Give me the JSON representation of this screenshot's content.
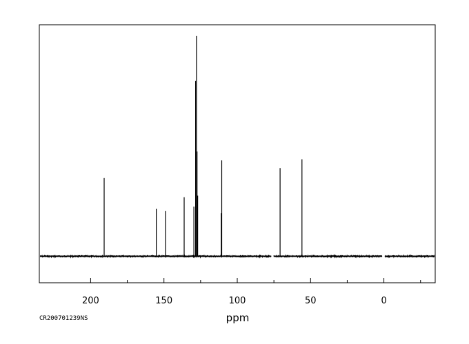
{
  "chart_data": {
    "type": "line",
    "subtype": "nmr-stick-spectrum",
    "title": "",
    "xlabel": "ppm",
    "ylabel": "",
    "sample_id": "CR200701239NS",
    "x_reversed": true,
    "xlim": [
      235,
      -35
    ],
    "ylim": [
      -0.12,
      1.05
    ],
    "x_ticks_major": [
      200,
      150,
      100,
      50,
      0
    ],
    "x_ticks_labeled": [
      "200",
      "150",
      "100",
      "50",
      "0"
    ],
    "x_ticks_minor": [
      175,
      125,
      75,
      25,
      -25
    ],
    "grid": false,
    "legend": "none",
    "baseline_y": 0,
    "baseline_gaps": [
      [
        76.8,
        75.2
      ],
      [
        1.2,
        -0.6
      ]
    ],
    "peaks": [
      {
        "ppm": 190.8,
        "intensity": 0.355
      },
      {
        "ppm": 155.2,
        "intensity": 0.215
      },
      {
        "ppm": 148.9,
        "intensity": 0.205
      },
      {
        "ppm": 136.2,
        "intensity": 0.268
      },
      {
        "ppm": 129.6,
        "intensity": 0.225
      },
      {
        "ppm": 128.4,
        "intensity": 0.795
      },
      {
        "ppm": 127.8,
        "intensity": 1.0
      },
      {
        "ppm": 127.4,
        "intensity": 0.475
      },
      {
        "ppm": 127.0,
        "intensity": 0.275
      },
      {
        "ppm": 110.9,
        "intensity": 0.195
      },
      {
        "ppm": 110.6,
        "intensity": 0.435
      },
      {
        "ppm": 70.8,
        "intensity": 0.4
      },
      {
        "ppm": 55.9,
        "intensity": 0.44
      }
    ],
    "colors": {
      "trace": "#000000",
      "frame": "#000000",
      "background": "#ffffff"
    }
  }
}
